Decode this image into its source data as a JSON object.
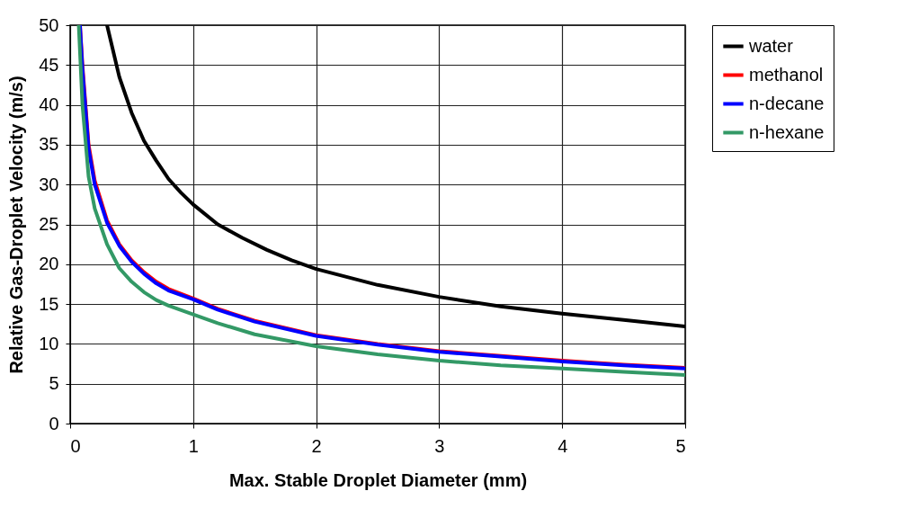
{
  "chart_data": {
    "type": "line",
    "xlabel": "Max. Stable Droplet Diameter (mm)",
    "ylabel": "Relative Gas-Droplet Velocity (m/s)",
    "xlim": [
      0,
      5
    ],
    "xticks": [
      0,
      1,
      2,
      3,
      4,
      5
    ],
    "ylim": [
      0,
      50
    ],
    "yticks": [
      0,
      5,
      10,
      15,
      20,
      25,
      30,
      35,
      40,
      45,
      50
    ],
    "grid": true,
    "legend": "right",
    "marker": "none",
    "line_style": "solid",
    "series": [
      {
        "name": "water",
        "color": "#000000",
        "x": [
          0.3,
          0.4,
          0.5,
          0.6,
          0.7,
          0.8,
          0.9,
          1.0,
          1.2,
          1.4,
          1.6,
          1.8,
          2.0,
          2.5,
          3.0,
          3.5,
          4.0,
          4.5,
          5.0
        ],
        "values": [
          50,
          43.5,
          39,
          35.5,
          33,
          30.7,
          29,
          27.5,
          25,
          23.3,
          21.8,
          20.5,
          19.4,
          17.4,
          15.9,
          14.7,
          13.8,
          13.0,
          12.2
        ]
      },
      {
        "name": "methanol",
        "color": "#ff0000",
        "x": [
          0.08,
          0.1,
          0.15,
          0.2,
          0.3,
          0.4,
          0.5,
          0.6,
          0.7,
          0.8,
          1.0,
          1.2,
          1.5,
          2.0,
          2.5,
          3.0,
          3.5,
          4.0,
          4.5,
          5.0
        ],
        "values": [
          50,
          45,
          35,
          30.5,
          25.5,
          22.5,
          20.5,
          19,
          17.8,
          16.9,
          15.7,
          14.4,
          12.9,
          11.1,
          10,
          9.1,
          8.5,
          7.9,
          7.4,
          7.0
        ]
      },
      {
        "name": "n-decane",
        "color": "#0000ff",
        "x": [
          0.08,
          0.1,
          0.15,
          0.2,
          0.3,
          0.4,
          0.5,
          0.6,
          0.7,
          0.8,
          1.0,
          1.2,
          1.5,
          2.0,
          2.5,
          3.0,
          3.5,
          4.0,
          4.5,
          5.0
        ],
        "values": [
          50,
          44.5,
          34.5,
          30,
          25.2,
          22.3,
          20.3,
          18.8,
          17.6,
          16.7,
          15.6,
          14.3,
          12.8,
          11.0,
          9.9,
          9.0,
          8.4,
          7.8,
          7.3,
          6.9
        ]
      },
      {
        "name": "n-hexane",
        "color": "#339966",
        "x": [
          0.07,
          0.1,
          0.15,
          0.2,
          0.3,
          0.4,
          0.5,
          0.6,
          0.7,
          0.8,
          1.0,
          1.2,
          1.5,
          2.0,
          2.5,
          3.0,
          3.5,
          4.0,
          4.5,
          5.0
        ],
        "values": [
          50,
          40,
          31,
          27,
          22.5,
          19.5,
          17.8,
          16.5,
          15.5,
          14.8,
          13.7,
          12.6,
          11.2,
          9.7,
          8.7,
          7.9,
          7.3,
          6.9,
          6.5,
          6.1
        ]
      }
    ]
  }
}
